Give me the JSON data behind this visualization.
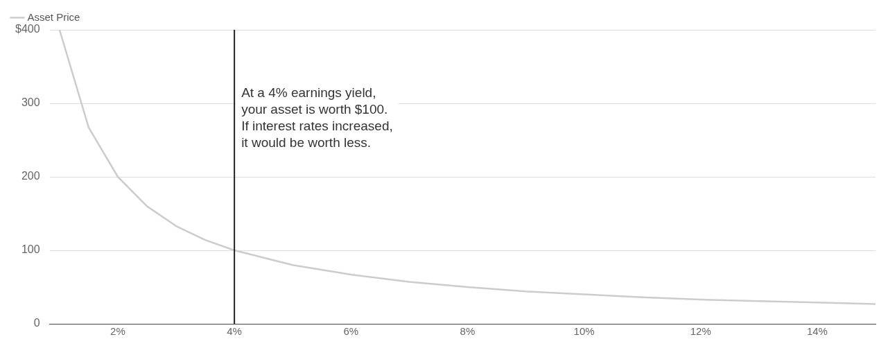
{
  "chart_data": {
    "type": "line",
    "x": [
      1,
      1.5,
      2,
      2.5,
      3,
      3.5,
      4,
      5,
      6,
      7,
      8,
      9,
      10,
      11,
      12,
      13,
      14,
      15
    ],
    "series": [
      {
        "name": "Asset Price",
        "color": "#cccccc",
        "values": [
          400,
          267,
          200,
          160,
          133,
          114,
          100,
          80,
          67,
          57,
          50,
          44,
          40,
          36,
          33,
          31,
          29,
          27
        ]
      }
    ],
    "xlim": [
      0.83,
      15
    ],
    "xticks": [
      {
        "value": 2,
        "label": "2%"
      },
      {
        "value": 4,
        "label": "4%"
      },
      {
        "value": 6,
        "label": "6%"
      },
      {
        "value": 8,
        "label": "8%"
      },
      {
        "value": 10,
        "label": "10%"
      },
      {
        "value": 12,
        "label": "12%"
      },
      {
        "value": 14,
        "label": "14%"
      }
    ],
    "ylim": [
      0,
      400
    ],
    "yticks": [
      0,
      100,
      200,
      300,
      {
        "value": 400,
        "label": "$400"
      }
    ],
    "grid": "y",
    "legend": "top left",
    "marker": "none",
    "line_style": "solid",
    "ref_lines": [
      {
        "axis": "x",
        "value": 4,
        "color": "#222222",
        "label": "At a 4% earnings yield, your asset is worth $100. If interest rates increased, it would be worth less."
      }
    ]
  }
}
